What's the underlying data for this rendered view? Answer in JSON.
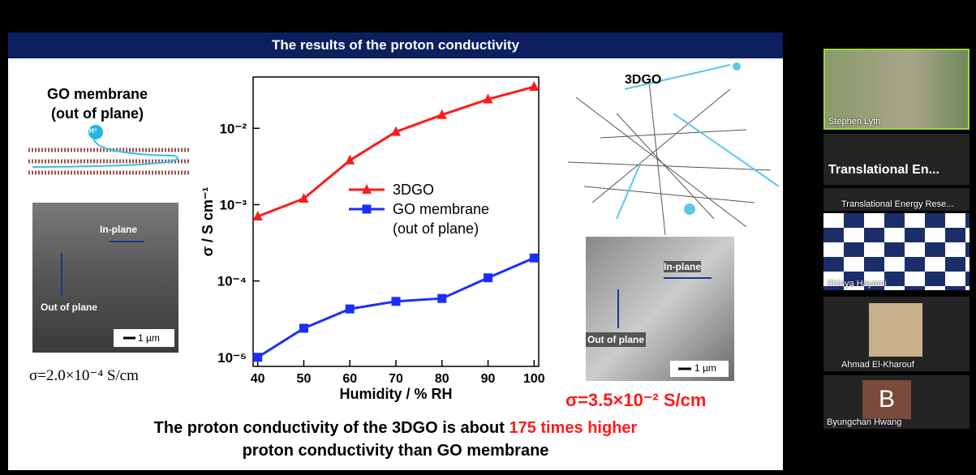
{
  "slide": {
    "title": "The results of the proton conductivity",
    "left": {
      "label": "GO membrane\n(out of plane)",
      "ion": "H⁺",
      "sem": {
        "in_plane": "In-plane",
        "out_of_plane": "Out of plane",
        "scale": "1 µm"
      },
      "sigma": "σ=2.0×10⁻⁴ S/cm"
    },
    "chart": {
      "type": "line",
      "xlabel": "Humidity / % RH",
      "ylabel": "σ / S cm⁻¹",
      "log_y": true,
      "x": [
        40,
        50,
        60,
        70,
        80,
        90,
        100
      ],
      "series": [
        {
          "name": "3DGO",
          "color": "#ff1a1a",
          "marker": "triangle",
          "values": [
            0.0007,
            0.0012,
            0.0038,
            0.009,
            0.015,
            0.024,
            0.035
          ]
        },
        {
          "name": "GO membrane\n(out of plane)",
          "color": "#1a2eff",
          "marker": "square",
          "values": [
            1e-05,
            2.4e-05,
            4.3e-05,
            5.4e-05,
            5.9e-05,
            0.00011,
            0.0002
          ]
        }
      ],
      "xlim": [
        39,
        101
      ],
      "xticks": [
        40,
        50,
        60,
        70,
        80,
        90,
        100
      ],
      "ylim": [
        7.6e-06,
        0.047
      ],
      "yticks": [
        {
          "value": 0.01,
          "label": "10⁻²"
        },
        {
          "value": 0.001,
          "label": "10⁻³"
        },
        {
          "value": 0.0001,
          "label": "10⁻⁴"
        },
        {
          "value": 1e-05,
          "label": "10⁻⁵"
        }
      ]
    },
    "right": {
      "label": "3DGO",
      "sem": {
        "in_plane": "In-plane",
        "out_of_plane": "Out of plane",
        "scale": "1 µm"
      },
      "sigma": "σ=3.5×10⁻² S/cm"
    },
    "conclusion": {
      "before": "The proton conductivity of the 3DGO is about ",
      "highlight": "175 times higher",
      "after": "proton conductivity than GO membrane"
    }
  },
  "sidebar_heading": "Translational En...",
  "participants": [
    {
      "name": "Stephen Lyth"
    },
    {
      "name": "Translational Energy Rese..."
    },
    {
      "name": "Shinya Hayami"
    },
    {
      "name": "Ahmad El-Kharouf"
    },
    {
      "name": "Byungchan Hwang",
      "initial": "B"
    }
  ]
}
